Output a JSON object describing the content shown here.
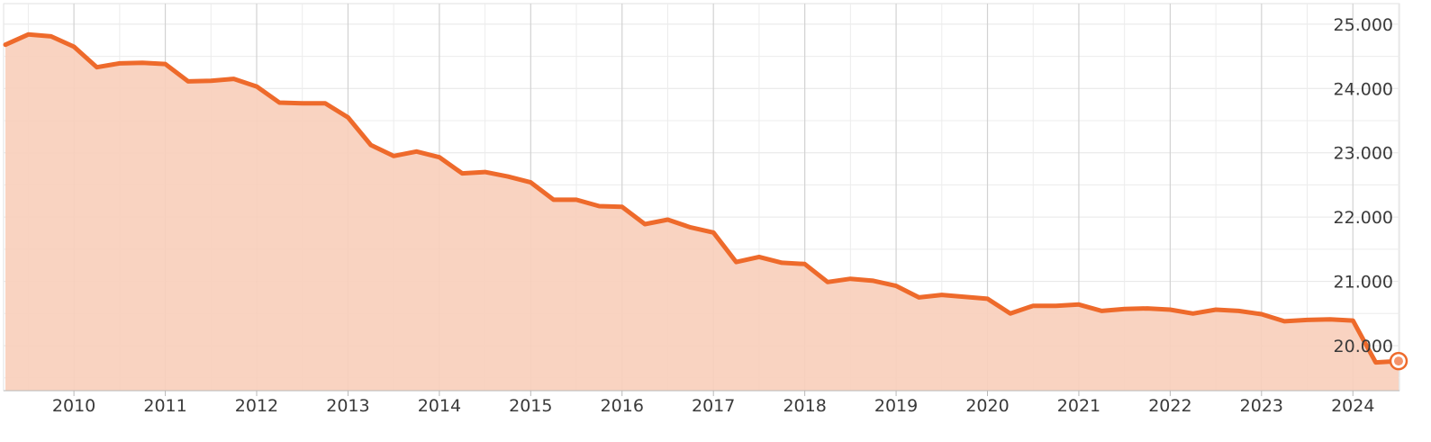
{
  "chart_data": {
    "type": "area",
    "title": "",
    "xlabel": "",
    "ylabel": "",
    "x_tick_labels": [
      "2010",
      "2011",
      "2012",
      "2013",
      "2014",
      "2015",
      "2016",
      "2017",
      "2018",
      "2019",
      "2020",
      "2021",
      "2022",
      "2023",
      "2024"
    ],
    "y_tick_labels": [
      "20.000",
      "21.000",
      "22.000",
      "23.000",
      "24.000",
      "25.000"
    ],
    "y_ticks": [
      20000,
      21000,
      22000,
      23000,
      24000,
      25000
    ],
    "xlim": [
      2009.23,
      2024.51
    ],
    "ylim": [
      19300,
      25320
    ],
    "grid": true,
    "y_axis_position": "right",
    "colors": {
      "line": "#ee6a2b",
      "fill": "#f9cfbc",
      "grid_major": "#d2d2d2",
      "grid_minor": "#ececec"
    },
    "series": [
      {
        "x": [
          2009.25,
          2009.5,
          2009.75,
          2010.0,
          2010.25,
          2010.5,
          2010.75,
          2011.0,
          2011.25,
          2011.5,
          2011.75,
          2012.0,
          2012.25,
          2012.5,
          2012.75,
          2013.0,
          2013.25,
          2013.5,
          2013.75,
          2014.0,
          2014.25,
          2014.5,
          2014.75,
          2015.0,
          2015.25,
          2015.5,
          2015.75,
          2016.0,
          2016.25,
          2016.5,
          2016.75,
          2017.0,
          2017.25,
          2017.5,
          2017.75,
          2018.0,
          2018.25,
          2018.5,
          2018.75,
          2019.0,
          2019.25,
          2019.5,
          2019.75,
          2020.0,
          2020.25,
          2020.5,
          2020.75,
          2021.0,
          2021.25,
          2021.5,
          2021.75,
          2022.0,
          2022.25,
          2022.5,
          2022.75,
          2023.0,
          2023.25,
          2023.5,
          2023.75,
          2024.0,
          2024.25,
          2024.5
        ],
        "values": [
          24680,
          24840,
          24810,
          24650,
          24330,
          24390,
          24400,
          24380,
          24110,
          24120,
          24150,
          24030,
          23780,
          23770,
          23770,
          23550,
          23120,
          22950,
          23020,
          22930,
          22680,
          22700,
          22630,
          22540,
          22270,
          22270,
          22170,
          22160,
          21890,
          21960,
          21840,
          21760,
          21300,
          21380,
          21290,
          21270,
          20990,
          21040,
          21010,
          20930,
          20750,
          20790,
          20760,
          20730,
          20500,
          20620,
          20620,
          20640,
          20540,
          20570,
          20580,
          20560,
          20500,
          20560,
          20540,
          20490,
          20380,
          20400,
          20410,
          20390,
          19740,
          19760
        ]
      }
    ]
  }
}
